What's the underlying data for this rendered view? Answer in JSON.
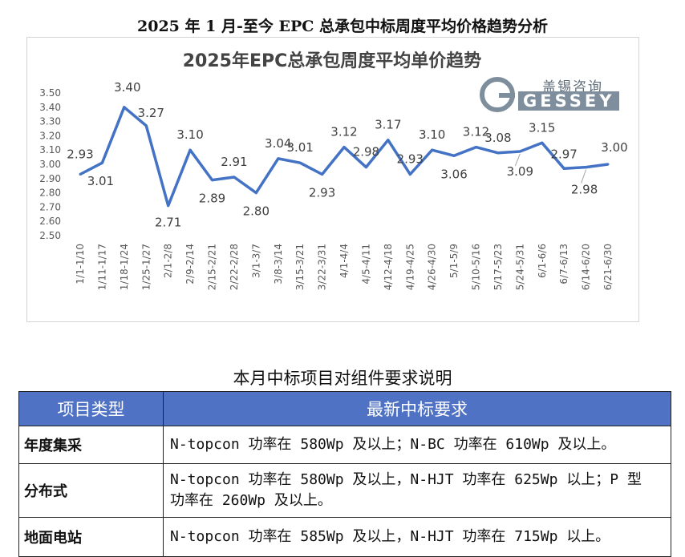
{
  "page_title": "2025 年 1 月-至今 EPC 总承包中标周度平均价格趋势分析",
  "logo": {
    "cn": "盖锡咨询",
    "en": "GESSEY"
  },
  "chart_data": {
    "type": "line",
    "title": "2025年EPC总承包周度平均单价趋势",
    "categories": [
      "1/1-1/10",
      "1/11-1/17",
      "1/18-1/24",
      "1/25-1/27",
      "2/1-2/8",
      "2/9-2/14",
      "2/15-2/21",
      "2/22-2/28",
      "3/1-3/7",
      "3/8-3/14",
      "3/15-3/21",
      "3/22-3/31",
      "4/1-4/4",
      "4/5-4/11",
      "4/12-4/18",
      "4/19-4/25",
      "4/26-4/30",
      "5/1-5/9",
      "5/10-5/16",
      "5/17-5/23",
      "5/24-5/31",
      "6/1-6/6",
      "6/7-6/13",
      "6/14-6/20",
      "6/21-6/30"
    ],
    "values": [
      2.93,
      3.01,
      3.4,
      3.27,
      2.71,
      3.1,
      2.89,
      2.91,
      2.8,
      3.04,
      3.01,
      2.93,
      3.12,
      2.98,
      3.17,
      2.93,
      3.1,
      3.06,
      3.12,
      3.08,
      3.09,
      3.15,
      2.97,
      2.98,
      3.0
    ],
    "data_labels": [
      "2.93",
      "3.01",
      "3.40",
      "3.27",
      "2.71",
      "3.10",
      "2.89",
      "2.91",
      "2.80",
      "3.04",
      "3.01",
      "2.93",
      "3.12",
      "2.98",
      "3.17",
      "2.93",
      "3.10",
      "3.06",
      "3.12",
      "3.08",
      "3.09",
      "3.15",
      "2.97",
      "2.98",
      "3.00"
    ],
    "y_ticks": [
      "2.50",
      "2.60",
      "2.70",
      "2.80",
      "2.90",
      "3.00",
      "3.10",
      "3.20",
      "3.30",
      "3.40",
      "3.50"
    ],
    "ylim": [
      2.5,
      3.5
    ],
    "line_color": "#4472c4",
    "grid": false,
    "legend": "none"
  },
  "section_title": "本月中标项目对组件要求说明",
  "table": {
    "headers": [
      "项目类型",
      "最新中标要求"
    ],
    "header_color": "#4f72c4",
    "rows": [
      {
        "type": "年度集采",
        "line1": "N-topcon 功率在 580Wp 及以上；N-BC 功率在 610Wp 及以上。",
        "line2": ""
      },
      {
        "type": "分布式",
        "line1": "N-topcon 功率在 580Wp 及以上，N-HJT 功率在 625Wp 以上；P 型",
        "line2": "功率在 260Wp 及以上。"
      },
      {
        "type": "地面电站",
        "line1": "N-topcon 功率在 585Wp 及以上，N-HJT 功率在 715Wp 以上。",
        "line2": ""
      }
    ]
  }
}
